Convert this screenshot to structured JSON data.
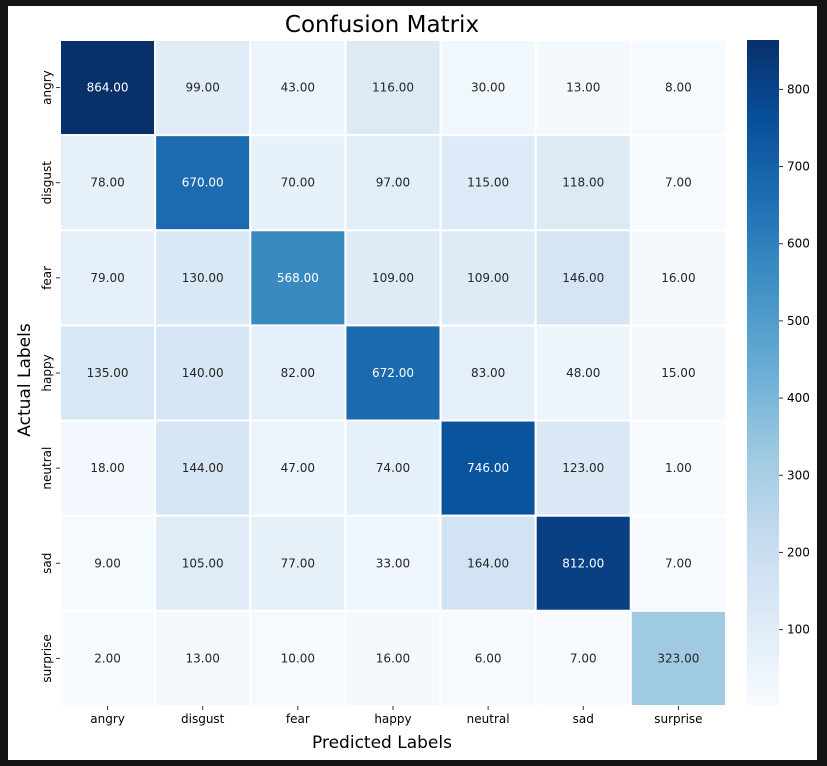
{
  "chart_data": {
    "type": "heatmap",
    "title": "Confusion Matrix",
    "xlabel": "Predicted Labels",
    "ylabel": "Actual Labels",
    "x_categories": [
      "angry",
      "disgust",
      "fear",
      "happy",
      "neutral",
      "sad",
      "surprise"
    ],
    "y_categories": [
      "angry",
      "disgust",
      "fear",
      "happy",
      "neutral",
      "sad",
      "surprise"
    ],
    "values": [
      [
        864,
        99,
        43,
        116,
        30,
        13,
        8
      ],
      [
        78,
        670,
        70,
        97,
        115,
        118,
        7
      ],
      [
        79,
        130,
        568,
        109,
        109,
        146,
        16
      ],
      [
        135,
        140,
        82,
        672,
        83,
        48,
        15
      ],
      [
        18,
        144,
        47,
        74,
        746,
        123,
        1
      ],
      [
        9,
        105,
        77,
        33,
        164,
        812,
        7
      ],
      [
        2,
        13,
        10,
        16,
        6,
        7,
        323
      ]
    ],
    "cell_labels": [
      [
        "864.00",
        "99.00",
        "43.00",
        "116.00",
        "30.00",
        "13.00",
        "8.00"
      ],
      [
        "78.00",
        "670.00",
        "70.00",
        "97.00",
        "115.00",
        "118.00",
        "7.00"
      ],
      [
        "79.00",
        "130.00",
        "568.00",
        "109.00",
        "109.00",
        "146.00",
        "16.00"
      ],
      [
        "135.00",
        "140.00",
        "82.00",
        "672.00",
        "83.00",
        "48.00",
        "15.00"
      ],
      [
        "18.00",
        "144.00",
        "47.00",
        "74.00",
        "746.00",
        "123.00",
        "1.00"
      ],
      [
        "9.00",
        "105.00",
        "77.00",
        "33.00",
        "164.00",
        "812.00",
        "7.00"
      ],
      [
        "2.00",
        "13.00",
        "10.00",
        "16.00",
        "6.00",
        "7.00",
        "323.00"
      ]
    ],
    "colormap": "Blues",
    "color_range": [
      1,
      864
    ],
    "colorbar_ticks": [
      100,
      200,
      300,
      400,
      500,
      600,
      700,
      800
    ],
    "colorbar_tick_labels": [
      "100",
      "200",
      "300",
      "400",
      "500",
      "600",
      "700",
      "800"
    ],
    "colors": {
      "low": "#f7fbff",
      "high": "#08306b",
      "text_dark": "#262626",
      "text_light": "#ffffff",
      "background": "#141414"
    }
  }
}
